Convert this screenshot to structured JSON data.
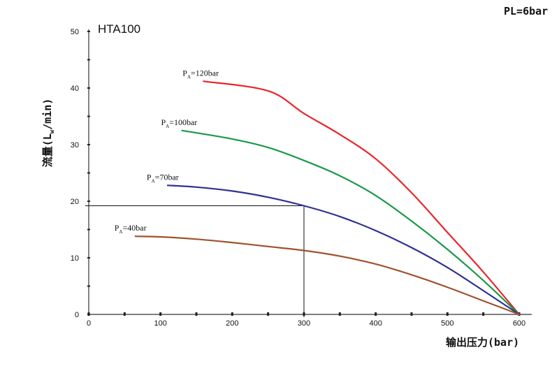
{
  "chart_data": {
    "type": "line",
    "title": "HTA100",
    "corner_label": "PL=6bar",
    "xlabel": "输出压力(bar)",
    "ylabel": "流量(L",
    "ylabel_sub": "w",
    "ylabel_tail": "/min)",
    "xlim": [
      0,
      610
    ],
    "ylim": [
      0,
      50
    ],
    "x_ticks": [
      0,
      100,
      200,
      300,
      400,
      500,
      600
    ],
    "y_ticks": [
      0,
      10,
      20,
      30,
      40,
      50
    ],
    "grid": false,
    "series": [
      {
        "name": "P_A=120bar",
        "label_main": "P",
        "label_sub": "A",
        "label_tail": "=120bar",
        "color": "#e8262a",
        "points": [
          [
            160,
            41.2
          ],
          [
            250,
            39.5
          ],
          [
            300,
            35.5
          ],
          [
            350,
            31.8
          ],
          [
            400,
            27.5
          ],
          [
            450,
            21.5
          ],
          [
            500,
            14.5
          ],
          [
            550,
            7.5
          ],
          [
            600,
            0
          ]
        ]
      },
      {
        "name": "P_A=100bar",
        "label_main": "P",
        "label_sub": "A",
        "label_tail": "=100bar",
        "color": "#1a9a48",
        "points": [
          [
            130,
            32.5
          ],
          [
            200,
            31.0
          ],
          [
            250,
            29.5
          ],
          [
            300,
            27.2
          ],
          [
            350,
            24.5
          ],
          [
            400,
            21.0
          ],
          [
            450,
            16.5
          ],
          [
            500,
            11.5
          ],
          [
            550,
            6.0
          ],
          [
            600,
            0
          ]
        ]
      },
      {
        "name": "P_A=70bar",
        "label_main": "P",
        "label_sub": "A",
        "label_tail": "=70bar",
        "color": "#2e3192",
        "points": [
          [
            110,
            22.8
          ],
          [
            150,
            22.5
          ],
          [
            200,
            21.8
          ],
          [
            250,
            20.7
          ],
          [
            300,
            19.2
          ],
          [
            350,
            17.3
          ],
          [
            400,
            14.8
          ],
          [
            450,
            11.8
          ],
          [
            500,
            8.3
          ],
          [
            550,
            4.2
          ],
          [
            600,
            0
          ]
        ]
      },
      {
        "name": "P_A=40bar",
        "label_main": "P",
        "label_sub": "A",
        "label_tail": "=40bar",
        "color": "#a0522d",
        "points": [
          [
            65,
            13.8
          ],
          [
            100,
            13.7
          ],
          [
            150,
            13.3
          ],
          [
            200,
            12.7
          ],
          [
            250,
            12.0
          ],
          [
            300,
            11.3
          ],
          [
            350,
            10.3
          ],
          [
            400,
            8.9
          ],
          [
            450,
            7.0
          ],
          [
            500,
            4.8
          ],
          [
            550,
            2.4
          ],
          [
            600,
            0
          ]
        ]
      }
    ],
    "reference_point": {
      "x": 300,
      "y": 19.2
    }
  }
}
